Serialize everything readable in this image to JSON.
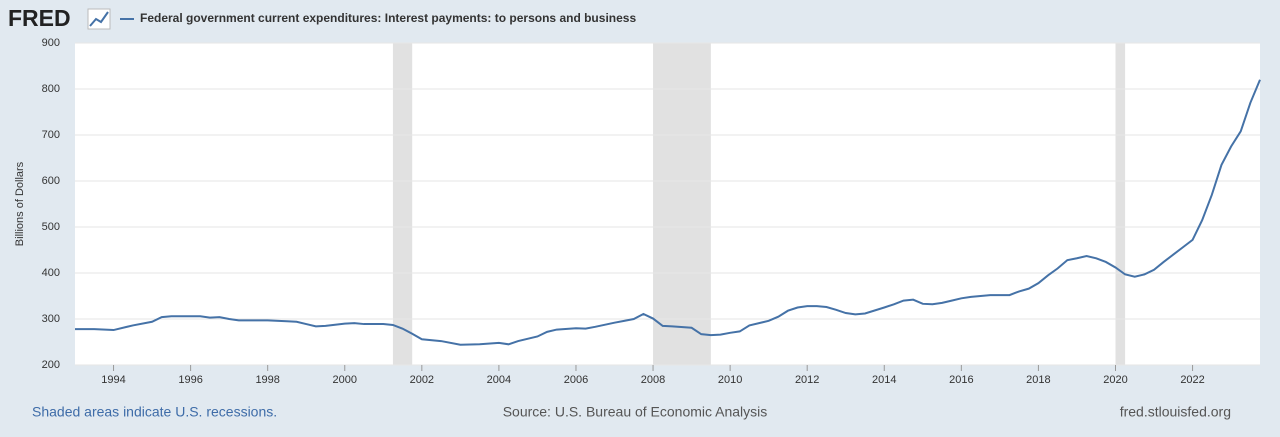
{
  "logo": "FRED",
  "chart_data": {
    "type": "line",
    "title": "Federal government current expenditures: Interest payments: to persons and business",
    "y_label": "Billions of Dollars",
    "note": "Shaded areas indicate U.S. recessions.",
    "source": "Source: U.S. Bureau of Economic Analysis",
    "site": "fred.stlouisfed.org",
    "x": [
      1993,
      1993.5,
      1994,
      1994.5,
      1995,
      1995.25,
      1995.5,
      1996,
      1996.25,
      1996.5,
      1996.75,
      1997,
      1997.25,
      1998,
      1998.5,
      1998.75,
      1999,
      1999.25,
      1999.5,
      2000,
      2000.25,
      2000.5,
      2001,
      2001.25,
      2001.5,
      2001.75,
      2002,
      2002.5,
      2003,
      2003.5,
      2004,
      2004.25,
      2004.5,
      2005,
      2005.25,
      2005.5,
      2006,
      2006.25,
      2006.5,
      2007,
      2007.25,
      2007.5,
      2007.75,
      2008,
      2008.25,
      2008.5,
      2009,
      2009.25,
      2009.5,
      2009.75,
      2010,
      2010.25,
      2010.5,
      2011,
      2011.25,
      2011.5,
      2011.75,
      2012,
      2012.25,
      2012.5,
      2012.75,
      2013,
      2013.25,
      2013.5,
      2014,
      2014.25,
      2014.5,
      2014.75,
      2015,
      2015.25,
      2015.5,
      2015.75,
      2016,
      2016.25,
      2016.5,
      2016.75,
      2017,
      2017.25,
      2017.5,
      2017.75,
      2018,
      2018.25,
      2018.5,
      2018.75,
      2019,
      2019.25,
      2019.5,
      2019.75,
      2020,
      2020.25,
      2020.5,
      2020.75,
      2021,
      2021.25,
      2021.5,
      2021.75,
      2022,
      2022.25,
      2022.5,
      2022.75,
      2023,
      2023.25,
      2023.5,
      2023.75
    ],
    "series": [
      {
        "name": "Federal government current expenditures: Interest payments: to persons and business",
        "color": "#4572a7",
        "values": [
          278,
          278,
          276,
          286,
          294,
          304,
          306,
          306,
          306,
          303,
          304,
          300,
          297,
          297,
          295,
          294,
          289,
          284,
          285,
          290,
          291,
          289,
          289,
          287,
          279,
          268,
          256,
          252,
          244,
          245,
          248,
          245,
          252,
          262,
          272,
          277,
          280,
          279,
          283,
          292,
          296,
          300,
          311,
          301,
          285,
          284,
          281,
          267,
          265,
          266,
          270,
          273,
          286,
          296,
          305,
          318,
          325,
          328,
          328,
          326,
          320,
          313,
          310,
          312,
          325,
          332,
          340,
          342,
          333,
          332,
          335,
          340,
          345,
          348,
          350,
          352,
          352,
          352,
          360,
          366,
          378,
          395,
          410,
          428,
          432,
          437,
          432,
          424,
          412,
          397,
          392,
          397,
          407,
          424,
          440,
          456,
          472,
          515,
          570,
          635,
          675,
          708,
          770,
          820
        ]
      }
    ],
    "recessions": [
      [
        2001.25,
        2001.75
      ],
      [
        2008,
        2009.5
      ],
      [
        2020,
        2020.25
      ]
    ],
    "recession_color": "#e1e1e1",
    "xlim": [
      1993,
      2023.75
    ],
    "xticks": [
      1994,
      1996,
      1998,
      2000,
      2002,
      2004,
      2006,
      2008,
      2010,
      2012,
      2014,
      2016,
      2018,
      2020,
      2022
    ],
    "ylim": [
      200,
      900
    ],
    "yticks": [
      200,
      300,
      400,
      500,
      600,
      700,
      800,
      900
    ],
    "grid": true
  }
}
